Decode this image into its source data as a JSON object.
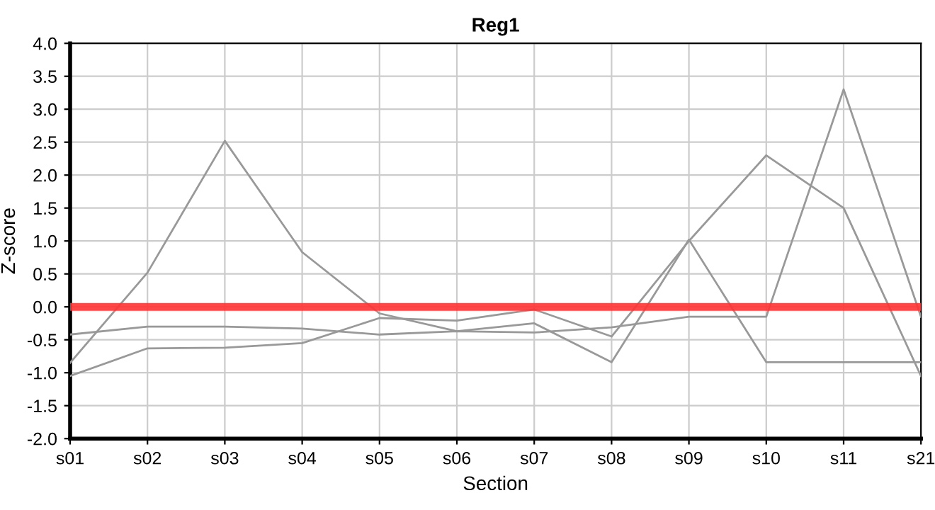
{
  "chart_data": {
    "type": "line",
    "title": "Reg1",
    "xlabel": "Section",
    "ylabel": "Z-score",
    "categories": [
      "s01",
      "s02",
      "s03",
      "s04",
      "s05",
      "s06",
      "s07",
      "s08",
      "s09",
      "s10",
      "s11",
      "s21"
    ],
    "series": [
      {
        "color": "#999999",
        "values": [
          -0.85,
          0.52,
          2.52,
          0.83,
          -0.1,
          -0.37,
          -0.25,
          -0.84,
          1.02,
          -0.84,
          -0.84,
          -0.84
        ]
      },
      {
        "color": "#999999",
        "values": [
          -0.42,
          -0.3,
          -0.3,
          -0.33,
          -0.42,
          -0.37,
          -0.39,
          -0.31,
          -0.15,
          -0.15,
          3.3,
          -0.15
        ]
      },
      {
        "color": "#999999",
        "values": [
          -1.05,
          -0.63,
          -0.62,
          -0.55,
          -0.17,
          -0.21,
          -0.04,
          -0.45,
          1.0,
          2.3,
          1.5,
          -1.05
        ]
      }
    ],
    "ylim": [
      -2.0,
      4.0
    ],
    "yticks": [
      {
        "value": -2,
        "label": "-2.0"
      },
      {
        "value": -1.5,
        "label": "-1.5"
      },
      {
        "value": -1,
        "label": "-1.0"
      },
      {
        "value": -0.5,
        "label": "-0.5"
      },
      {
        "value": 0,
        "label": "0.0"
      },
      {
        "value": 0.5,
        "label": "0.5"
      },
      {
        "value": 1,
        "label": "1.0"
      },
      {
        "value": 1.5,
        "label": "1.5"
      },
      {
        "value": 2,
        "label": "2.0"
      },
      {
        "value": 2.5,
        "label": "2.5"
      },
      {
        "value": 3,
        "label": "3.0"
      },
      {
        "value": 3.5,
        "label": "3.5"
      },
      {
        "value": 4,
        "label": "4.0"
      }
    ],
    "grid": true,
    "marker": "none",
    "line_style": "solid",
    "legend": false,
    "ref_lines": [
      {
        "axis": "y",
        "value": 0,
        "color": "#ff3333"
      }
    ]
  }
}
